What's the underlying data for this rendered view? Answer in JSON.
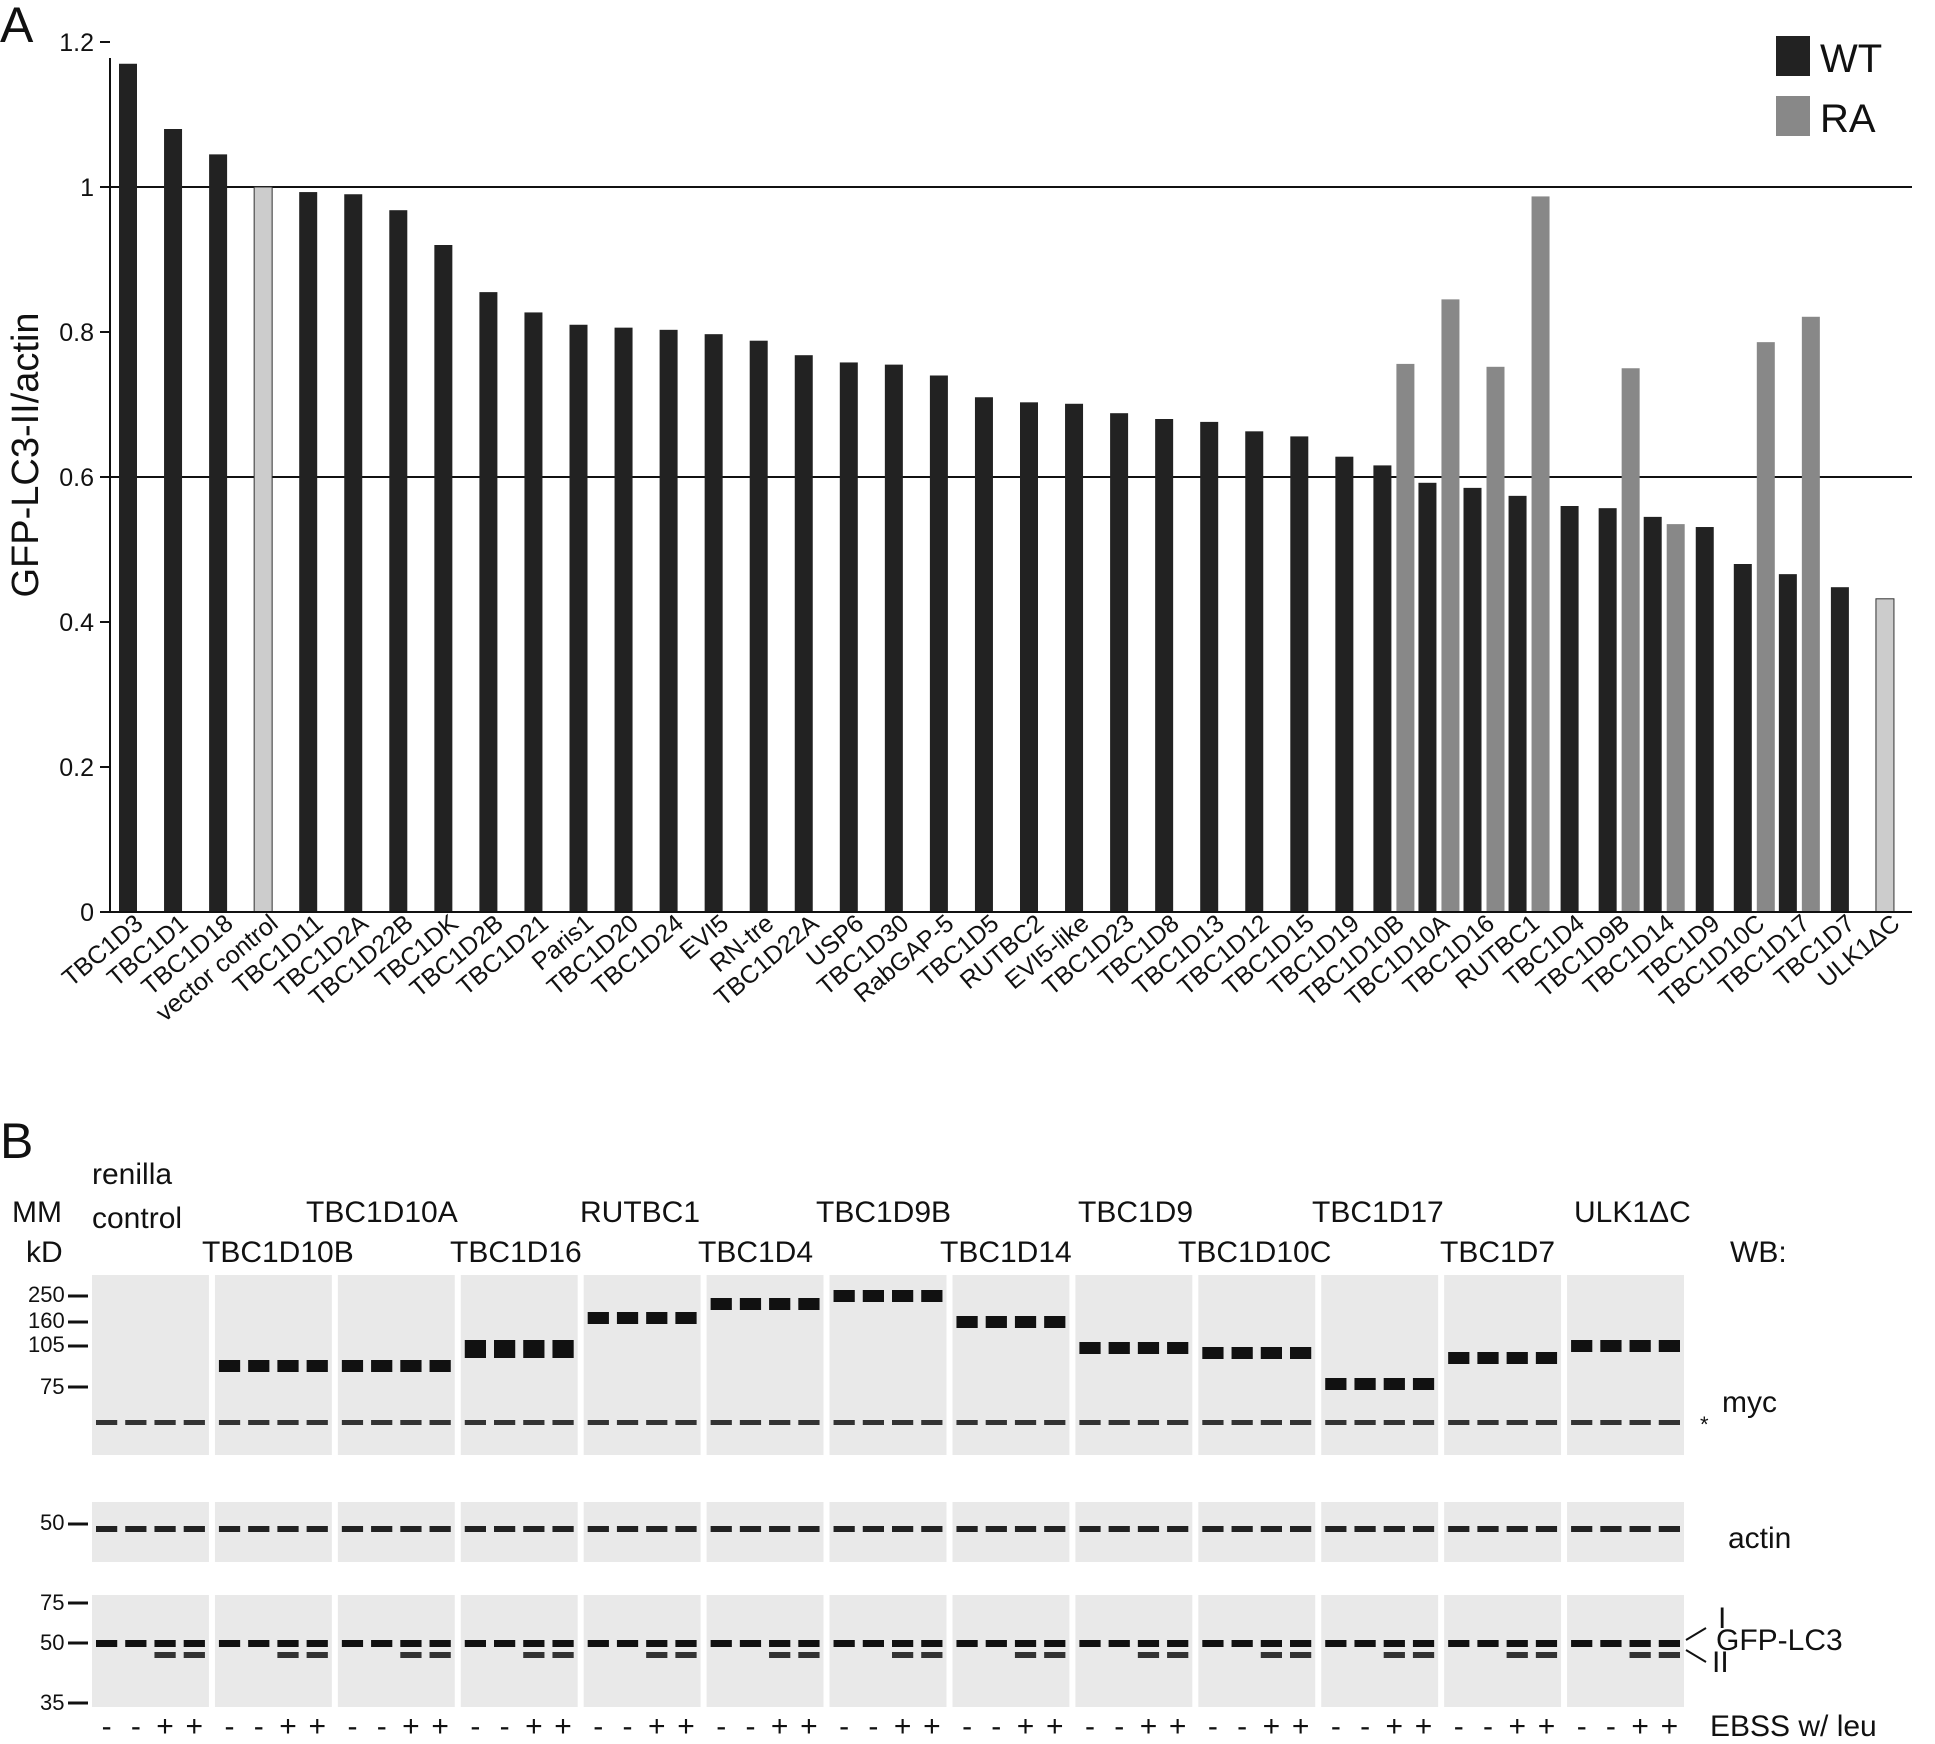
{
  "figure": {
    "panel_a_label": "A",
    "panel_b_label": "B"
  },
  "chart_data": {
    "type": "bar",
    "ylabel": "GFP-LC3-II/actin",
    "xlabel": "",
    "ylim": [
      0,
      1.2
    ],
    "yticks": [
      0,
      0.2,
      0.4,
      0.6,
      0.8,
      1,
      1.2
    ],
    "ytick_labels": [
      "0",
      "0.2",
      "0.4",
      "0.6",
      "0.8",
      "1",
      "1.2"
    ],
    "reference_lines": [
      1.0,
      0.6
    ],
    "legend": {
      "position": "top-right",
      "entries": [
        "WT",
        "RA"
      ]
    },
    "colors": {
      "WT": "#222222",
      "RA": "#888888",
      "control": "#cccccc"
    },
    "categories": [
      "TBC1D3",
      "TBC1D1",
      "TBC1D18",
      "vector control",
      "TBC1D11",
      "TBC1D2A",
      "TBC1D22B",
      "TBC1DK",
      "TBC1D2B",
      "TBC1D21",
      "Paris1",
      "TBC1D20",
      "TBC1D24",
      "EVI5",
      "RN-tre",
      "TBC1D22A",
      "USP6",
      "TBC1D30",
      "RabGAP-5",
      "TBC1D5",
      "RUTBC2",
      "EVI5-like",
      "TBC1D23",
      "TBC1D8",
      "TBC1D13",
      "TBC1D12",
      "TBC1D15",
      "TBC1D19",
      "TBC1D10B",
      "TBC1D10A",
      "TBC1D16",
      "RUTBC1",
      "TBC1D4",
      "TBC1D9B",
      "TBC1D14",
      "TBC1D9",
      "TBC1D10C",
      "TBC1D17",
      "TBC1D7",
      "ULK1ΔC"
    ],
    "series": [
      {
        "name": "WT",
        "values": [
          1.17,
          1.08,
          1.045,
          null,
          0.993,
          0.99,
          0.968,
          0.92,
          0.855,
          0.827,
          0.81,
          0.806,
          0.803,
          0.797,
          0.788,
          0.768,
          0.758,
          0.755,
          0.74,
          0.71,
          0.703,
          0.701,
          0.688,
          0.68,
          0.676,
          0.663,
          0.656,
          0.628,
          0.616,
          0.592,
          0.585,
          0.574,
          0.56,
          0.557,
          0.545,
          0.531,
          0.48,
          0.466,
          0.448,
          null
        ]
      },
      {
        "name": "RA",
        "values": [
          null,
          null,
          null,
          null,
          null,
          null,
          null,
          null,
          null,
          null,
          null,
          null,
          null,
          null,
          null,
          null,
          null,
          null,
          null,
          null,
          null,
          null,
          null,
          null,
          null,
          null,
          null,
          null,
          0.756,
          0.845,
          0.752,
          0.987,
          null,
          0.75,
          0.535,
          null,
          0.786,
          0.821,
          null,
          null
        ]
      },
      {
        "name": "control",
        "values": [
          null,
          null,
          null,
          1.0,
          null,
          null,
          null,
          null,
          null,
          null,
          null,
          null,
          null,
          null,
          null,
          null,
          null,
          null,
          null,
          null,
          null,
          null,
          null,
          null,
          null,
          null,
          null,
          null,
          null,
          null,
          null,
          null,
          null,
          null,
          null,
          null,
          null,
          null,
          null,
          0.432
        ]
      }
    ]
  },
  "blot": {
    "mm_header": "MM",
    "kd_header": "kD",
    "wb_header": "WB:",
    "top_labels": [
      "renilla",
      "control",
      "TBC1D10A",
      "RUTBC1",
      "TBC1D9B",
      "TBC1D9",
      "TBC1D17",
      "ULK1ΔC"
    ],
    "bottom_labels": [
      "TBC1D10B",
      "TBC1D16",
      "TBC1D4",
      "TBC1D14",
      "TBC1D10C",
      "TBC1D7"
    ],
    "mw_myc": [
      "250",
      "160",
      "105",
      "75"
    ],
    "mw_actin": [
      "50"
    ],
    "mw_lc3": [
      "75",
      "50",
      "35"
    ],
    "row_labels": [
      "myc",
      "actin",
      "GFP-LC3"
    ],
    "band_labels": [
      "I",
      "II"
    ],
    "asterisk": "*",
    "treatment_label": "EBSS w/ leu",
    "minus": "-",
    "plus": "+",
    "num_panels": 13
  }
}
